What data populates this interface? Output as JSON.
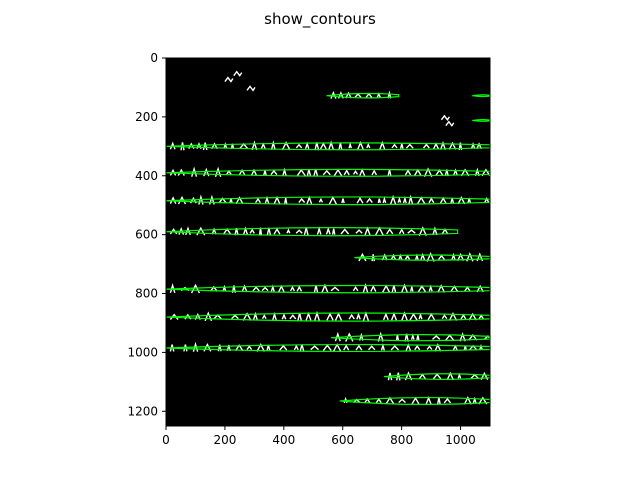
{
  "chart_data": {
    "type": "image",
    "title": "show_contours",
    "xlabel": "",
    "ylabel": "",
    "xlim": [
      0,
      1100
    ],
    "ylim": [
      1250,
      0
    ],
    "x_ticks": [
      0,
      200,
      400,
      600,
      800,
      1000
    ],
    "y_ticks": [
      0,
      200,
      400,
      600,
      800,
      1000,
      1200
    ],
    "x_tick_labels": [
      "0",
      "200",
      "400",
      "600",
      "800",
      "1000"
    ],
    "y_tick_labels": [
      "0",
      "200",
      "400",
      "600",
      "800",
      "1000",
      "1200"
    ],
    "background_color": "#000000",
    "text_color": "#ffffff",
    "contour_color": "#00ff00",
    "contours": [
      {
        "x0": 545,
        "x1": 790,
        "y": 128,
        "h": 22
      },
      {
        "x0": 1040,
        "x1": 1100,
        "y": 128,
        "h": 8
      },
      {
        "x0": 1040,
        "x1": 1100,
        "y": 212,
        "h": 6
      },
      {
        "x0": 0,
        "x1": 1100,
        "y": 300,
        "h": 34
      },
      {
        "x0": 0,
        "x1": 1100,
        "y": 390,
        "h": 34
      },
      {
        "x0": 0,
        "x1": 1100,
        "y": 485,
        "h": 38
      },
      {
        "x0": 0,
        "x1": 990,
        "y": 590,
        "h": 40
      },
      {
        "x0": 640,
        "x1": 1100,
        "y": 678,
        "h": 26
      },
      {
        "x0": 0,
        "x1": 1100,
        "y": 785,
        "h": 36
      },
      {
        "x0": 0,
        "x1": 1100,
        "y": 880,
        "h": 40
      },
      {
        "x0": 560,
        "x1": 1100,
        "y": 950,
        "h": 30
      },
      {
        "x0": 0,
        "x1": 1100,
        "y": 985,
        "h": 34
      },
      {
        "x0": 740,
        "x1": 1100,
        "y": 1082,
        "h": 28
      },
      {
        "x0": 590,
        "x1": 1100,
        "y": 1165,
        "h": 34
      }
    ]
  }
}
